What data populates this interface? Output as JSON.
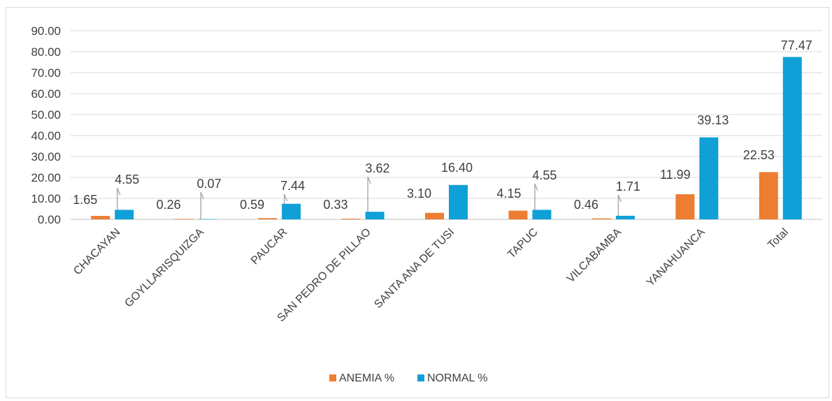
{
  "chart_data": {
    "type": "bar",
    "title": "",
    "xlabel": "",
    "ylabel": "",
    "categories": [
      "CHACAYAN",
      "GOYLLARISQUIZGA",
      "PAUCAR",
      "SAN PEDRO DE PILLAO",
      "SANTA ANA DE TUSI",
      "TAPUC",
      "VILCABAMBA",
      "YANAHUANCA",
      "Total"
    ],
    "series": [
      {
        "name": "ANEMIA %",
        "color": "#ED7D31",
        "values": [
          1.65,
          0.26,
          0.59,
          0.33,
          3.1,
          4.15,
          0.46,
          11.99,
          22.53
        ],
        "labels": [
          "1.65",
          "0.26",
          "0.59",
          "0.33",
          "3.10",
          "4.15",
          "0.46",
          "11.99",
          "22.53"
        ]
      },
      {
        "name": "NORMAL %",
        "color": "#0FA0D8",
        "values": [
          4.55,
          0.07,
          7.44,
          3.62,
          16.4,
          4.55,
          1.71,
          39.13,
          77.47
        ],
        "labels": [
          "4.55",
          "0.07",
          "7.44",
          "3.62",
          "16.40",
          "4.55",
          "1.71",
          "39.13",
          "77.47"
        ]
      }
    ],
    "ylim": [
      0,
      90
    ],
    "yticks": [
      "0.00",
      "10.00",
      "20.00",
      "30.00",
      "40.00",
      "50.00",
      "60.00",
      "70.00",
      "80.00",
      "90.00"
    ],
    "grid": true,
    "legend_position": "bottom"
  }
}
